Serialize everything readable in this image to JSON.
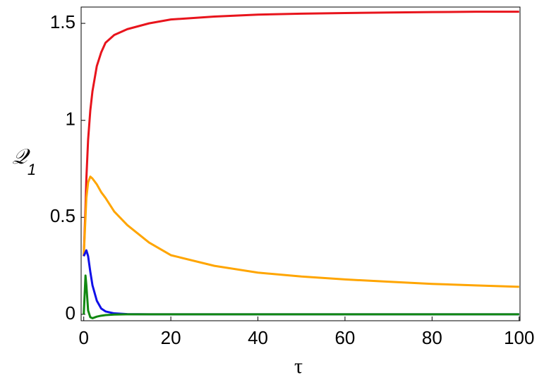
{
  "chart_data": {
    "type": "line",
    "xlabel": "τ",
    "ylabel": "𝒬",
    "ylabel_subscript": "1",
    "x": [
      0,
      0.4,
      0.6,
      1,
      1.5,
      2,
      3,
      4,
      5,
      7,
      10,
      15,
      20,
      30,
      40,
      50,
      60,
      70,
      80,
      90,
      100
    ],
    "series": [
      {
        "color": "#e8141c",
        "values": [
          0.3,
          0.55,
          0.7,
          0.9,
          1.05,
          1.15,
          1.28,
          1.35,
          1.4,
          1.44,
          1.47,
          1.5,
          1.52,
          1.535,
          1.545,
          1.55,
          1.553,
          1.556,
          1.558,
          1.56,
          1.56
        ]
      },
      {
        "color": "#ffa500",
        "values": [
          0.3,
          0.5,
          0.6,
          0.68,
          0.71,
          0.7,
          0.67,
          0.63,
          0.6,
          0.53,
          0.46,
          0.37,
          0.305,
          0.25,
          0.215,
          0.195,
          0.18,
          0.168,
          0.157,
          0.149,
          0.142
        ]
      },
      {
        "color": "#1010e8",
        "values": [
          0.3,
          0.32,
          0.33,
          0.3,
          0.22,
          0.15,
          0.07,
          0.03,
          0.015,
          0.005,
          0.001,
          0,
          0,
          0,
          0,
          0,
          0,
          0,
          0,
          0,
          0
        ]
      },
      {
        "color": "#118811",
        "values": [
          0,
          0.2,
          0.15,
          0.02,
          -0.015,
          -0.02,
          -0.012,
          -0.007,
          -0.004,
          -0.001,
          0,
          0,
          0,
          0,
          0,
          0,
          0,
          0,
          0,
          0,
          0
        ]
      }
    ],
    "xlim": [
      -0.6,
      100.2
    ],
    "ylim": [
      -0.033,
      1.584
    ],
    "xticks": [
      0,
      20,
      40,
      60,
      80,
      100
    ],
    "yticks": [
      0,
      0.5,
      1,
      1.5
    ]
  }
}
